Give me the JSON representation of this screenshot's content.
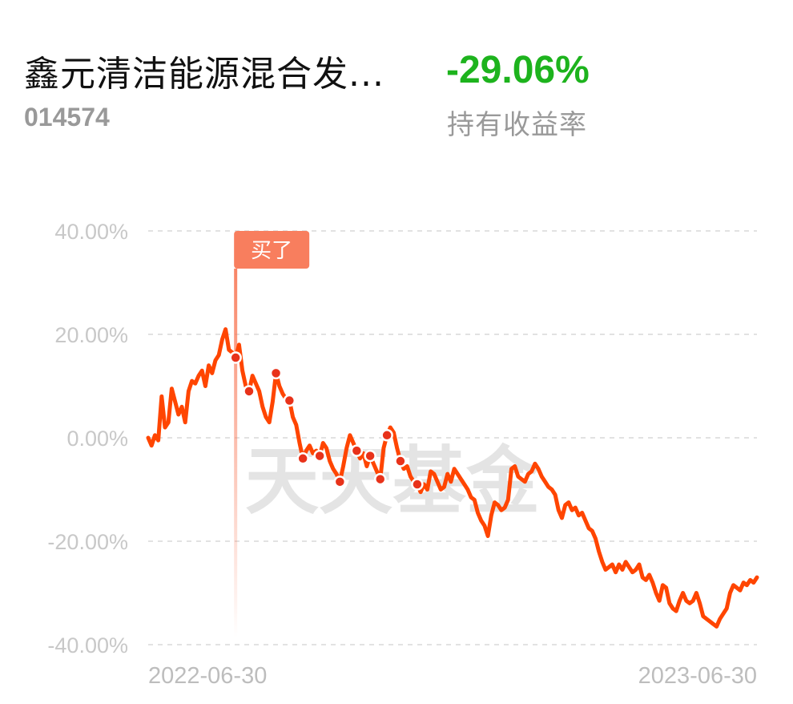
{
  "header": {
    "fund_name": "鑫元清洁能源混合发...",
    "fund_code": "014574",
    "return_value": "-29.06%",
    "return_label": "持有收益率",
    "return_color": "#1db31d"
  },
  "chart_data": {
    "type": "line",
    "watermark": "天天基金",
    "y_ticks": [
      "40.00%",
      "20.00%",
      "0.00%",
      "-20.00%",
      "-40.00%"
    ],
    "ylim": [
      -40,
      40
    ],
    "grid": true,
    "x_labels": [
      "2022-06-30",
      "2023-06-30"
    ],
    "line_color": "#ff4500",
    "marker": {
      "label": "买了",
      "index": 26,
      "color": "#f87e5e"
    },
    "buy_points": [
      26,
      30,
      38,
      42,
      46,
      51,
      57,
      62,
      66,
      69,
      71,
      75,
      80
    ],
    "series": [
      {
        "values": [
          0.0,
          -1.5,
          0.5,
          -0.5,
          8.0,
          2.0,
          3.0,
          9.5,
          7.0,
          4.5,
          6.0,
          3.0,
          9.0,
          11.0,
          10.5,
          12.0,
          13.0,
          10.0,
          14.0,
          12.5,
          15.0,
          16.0,
          19.0,
          21.0,
          17.0,
          16.5,
          15.5,
          18.0,
          13.0,
          10.0,
          9.0,
          12.0,
          10.5,
          9.0,
          6.0,
          4.0,
          3.0,
          7.0,
          12.5,
          10.0,
          8.5,
          7.5,
          7.2,
          4.0,
          2.5,
          -1.0,
          -4.0,
          -2.5,
          -1.5,
          -3.0,
          -2.5,
          -3.5,
          -1.0,
          -2.0,
          -4.5,
          -6.0,
          -7.0,
          -8.5,
          -5.5,
          -2.0,
          0.5,
          -1.0,
          -2.5,
          -4.0,
          -3.0,
          -5.5,
          -3.5,
          -5.0,
          -6.5,
          -8.0,
          -2.0,
          0.5,
          2.0,
          1.0,
          -2.0,
          -4.5,
          -6.0,
          -5.5,
          -7.5,
          -8.5,
          -9.0,
          -10.5,
          -9.0,
          -10.0,
          -6.5,
          -7.0,
          -8.5,
          -10.0,
          -9.5,
          -7.0,
          -8.5,
          -6.0,
          -7.0,
          -8.0,
          -9.0,
          -10.0,
          -11.5,
          -12.0,
          -14.5,
          -16.0,
          -17.0,
          -19.0,
          -15.0,
          -12.5,
          -13.0,
          -14.0,
          -13.5,
          -12.0,
          -6.0,
          -5.5,
          -7.5,
          -8.0,
          -8.5,
          -7.0,
          -6.5,
          -5.0,
          -6.0,
          -7.5,
          -8.5,
          -9.5,
          -10.0,
          -11.0,
          -14.0,
          -15.5,
          -13.0,
          -12.5,
          -14.0,
          -13.5,
          -15.0,
          -14.5,
          -16.0,
          -17.5,
          -18.0,
          -19.5,
          -22.0,
          -24.0,
          -25.5,
          -25.0,
          -24.5,
          -26.0,
          -24.5,
          -25.5,
          -24.0,
          -25.0,
          -26.0,
          -25.5,
          -24.5,
          -27.0,
          -27.5,
          -26.5,
          -28.0,
          -30.0,
          -31.5,
          -28.5,
          -29.0,
          -32.0,
          -33.0,
          -33.5,
          -31.5,
          -30.0,
          -31.5,
          -32.0,
          -31.5,
          -30.0,
          -32.0,
          -34.5,
          -35.0,
          -35.5,
          -36.0,
          -36.5,
          -35.0,
          -34.0,
          -33.0,
          -30.0,
          -28.5,
          -29.0,
          -29.5,
          -28.0,
          -28.5,
          -27.5,
          -28.0,
          -27.0
        ]
      }
    ]
  }
}
